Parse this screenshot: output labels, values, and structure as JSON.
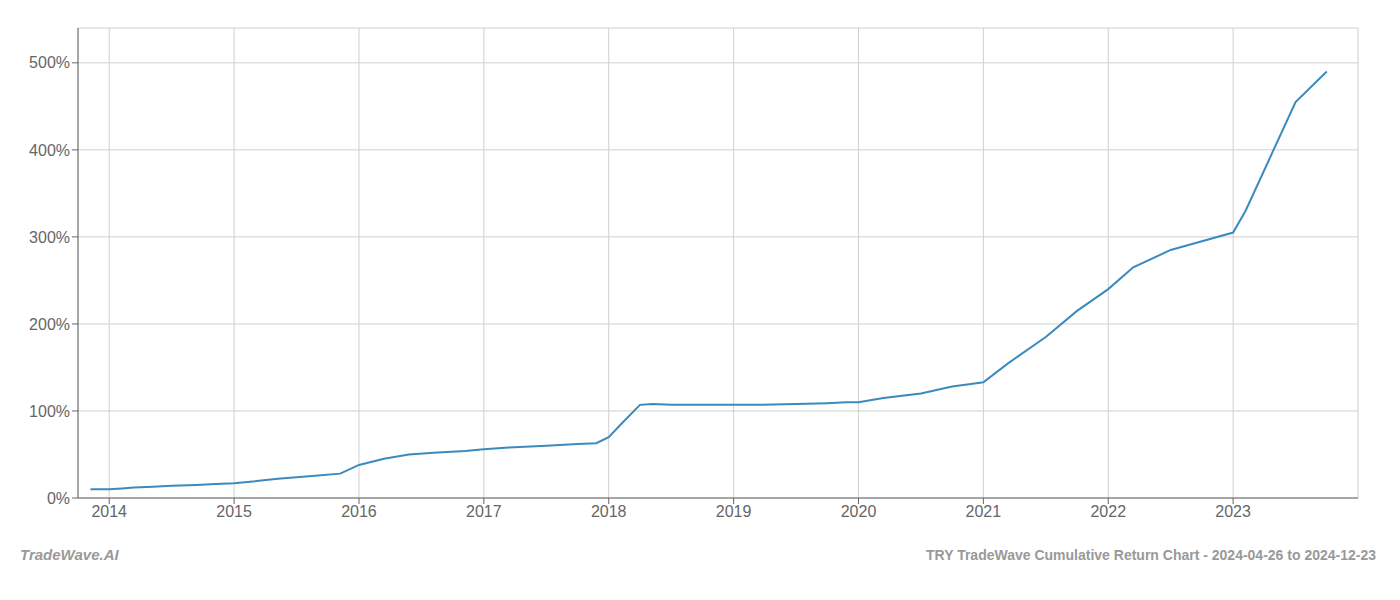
{
  "chart_data": {
    "type": "line",
    "title": "TRY TradeWave Cumulative Return Chart - 2024-04-26 to 2024-12-23",
    "annotations": [
      "TradeWave.AI"
    ],
    "x": [
      2013.85,
      2014.0,
      2014.1,
      2014.2,
      2014.35,
      2014.5,
      2014.7,
      2014.85,
      2015.0,
      2015.15,
      2015.35,
      2015.6,
      2015.85,
      2016.0,
      2016.2,
      2016.4,
      2016.6,
      2016.85,
      2017.0,
      2017.2,
      2017.5,
      2017.75,
      2017.9,
      2018.0,
      2018.1,
      2018.25,
      2018.35,
      2018.5,
      2018.75,
      2018.9,
      2019.0,
      2019.2,
      2019.5,
      2019.75,
      2019.9,
      2020.0,
      2020.2,
      2020.5,
      2020.75,
      2020.9,
      2021.0,
      2021.2,
      2021.5,
      2021.75,
      2021.9,
      2022.0,
      2022.2,
      2022.5,
      2022.75,
      2023.0,
      2023.1,
      2023.5,
      2023.75
    ],
    "values": [
      10,
      10,
      11,
      12,
      13,
      14,
      15,
      16,
      17,
      19,
      22,
      25,
      28,
      38,
      45,
      50,
      52,
      54,
      56,
      58,
      60,
      62,
      63,
      70,
      85,
      107,
      108,
      107,
      107,
      107,
      107,
      107,
      108,
      109,
      110,
      110,
      115,
      120,
      128,
      131,
      133,
      155,
      185,
      215,
      230,
      240,
      265,
      285,
      295,
      305,
      330,
      455,
      490
    ],
    "color": "#3a8abf",
    "xlim": [
      2013.75,
      2024.0
    ],
    "xticks": [
      2014,
      2015,
      2016,
      2017,
      2018,
      2019,
      2020,
      2021,
      2022,
      2023
    ],
    "ylim": [
      0,
      540
    ],
    "yticks": [
      {
        "value": 0,
        "label": "0%"
      },
      {
        "value": 100,
        "label": "100%"
      },
      {
        "value": 200,
        "label": "200%"
      },
      {
        "value": 300,
        "label": "300%"
      },
      {
        "value": 400,
        "label": "400%"
      },
      {
        "value": 500,
        "label": "500%"
      }
    ],
    "grid": true
  }
}
